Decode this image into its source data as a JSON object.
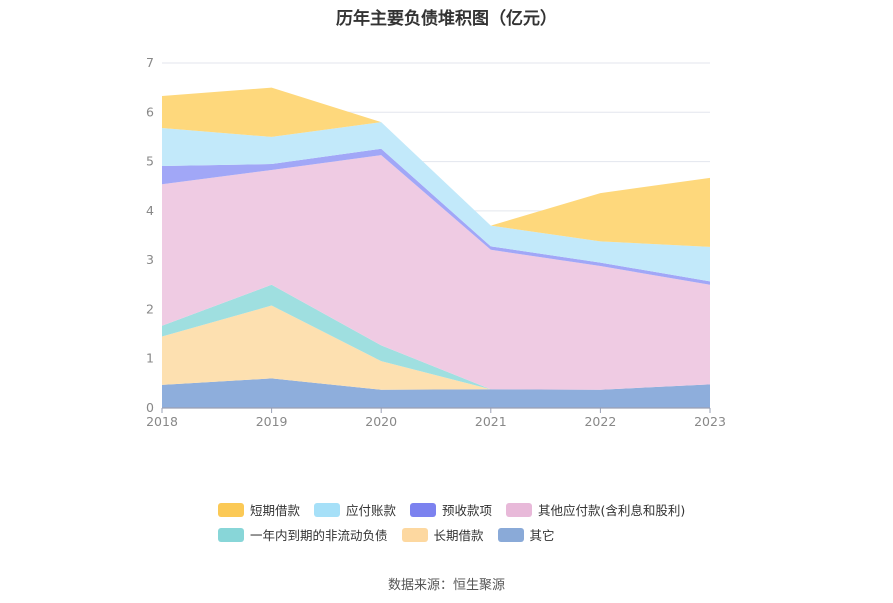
{
  "chart_data": {
    "type": "area",
    "stacked": true,
    "title": "历年主要负债堆积图（亿元）",
    "xlabel": "",
    "ylabel": "",
    "x": [
      "2018",
      "2019",
      "2020",
      "2021",
      "2022",
      "2023"
    ],
    "ylim": [
      0,
      7
    ],
    "yticks": [
      0,
      1,
      2,
      3,
      4,
      5,
      6,
      7
    ],
    "grid": true,
    "legend_position": "bottom",
    "series": [
      {
        "name": "其它",
        "color": "#8eaedc",
        "values": [
          0.47,
          0.6,
          0.37,
          0.38,
          0.37,
          0.48
        ]
      },
      {
        "name": "长期借款",
        "color": "#fde0b0",
        "values": [
          0.98,
          1.48,
          0.58,
          0.0,
          0.0,
          0.0
        ]
      },
      {
        "name": "一年内到期的非流动负债",
        "color": "#9fdfe0",
        "values": [
          0.22,
          0.42,
          0.32,
          0.0,
          0.0,
          0.0
        ]
      },
      {
        "name": "其他应付款(含利息和股利)",
        "color": "#efcbe3",
        "values": [
          2.87,
          2.33,
          3.86,
          2.83,
          2.51,
          2.02
        ]
      },
      {
        "name": "预收款项",
        "color": "#a1a7f7",
        "values": [
          0.37,
          0.12,
          0.13,
          0.07,
          0.07,
          0.07
        ]
      },
      {
        "name": "应付账款",
        "color": "#c2e9fa",
        "values": [
          0.77,
          0.55,
          0.54,
          0.42,
          0.43,
          0.7
        ]
      },
      {
        "name": "短期借款",
        "color": "#fed87c",
        "values": [
          0.65,
          1.0,
          0.0,
          0.0,
          0.98,
          1.4
        ]
      }
    ]
  },
  "legend": {
    "rows": [
      [
        {
          "name": "短期借款",
          "color": "#fbc956"
        },
        {
          "name": "应付账款",
          "color": "#a6e0f8"
        },
        {
          "name": "预收款项",
          "color": "#7c82ef"
        },
        {
          "name": "其他应付款(含利息和股利)",
          "color": "#e8b9d9"
        }
      ],
      [
        {
          "name": "一年内到期的非流动负债",
          "color": "#88d6d8"
        },
        {
          "name": "长期借款",
          "color": "#fdd8a0"
        },
        {
          "name": "其它",
          "color": "#8aaad8"
        }
      ]
    ]
  },
  "source": "数据来源：恒生聚源"
}
